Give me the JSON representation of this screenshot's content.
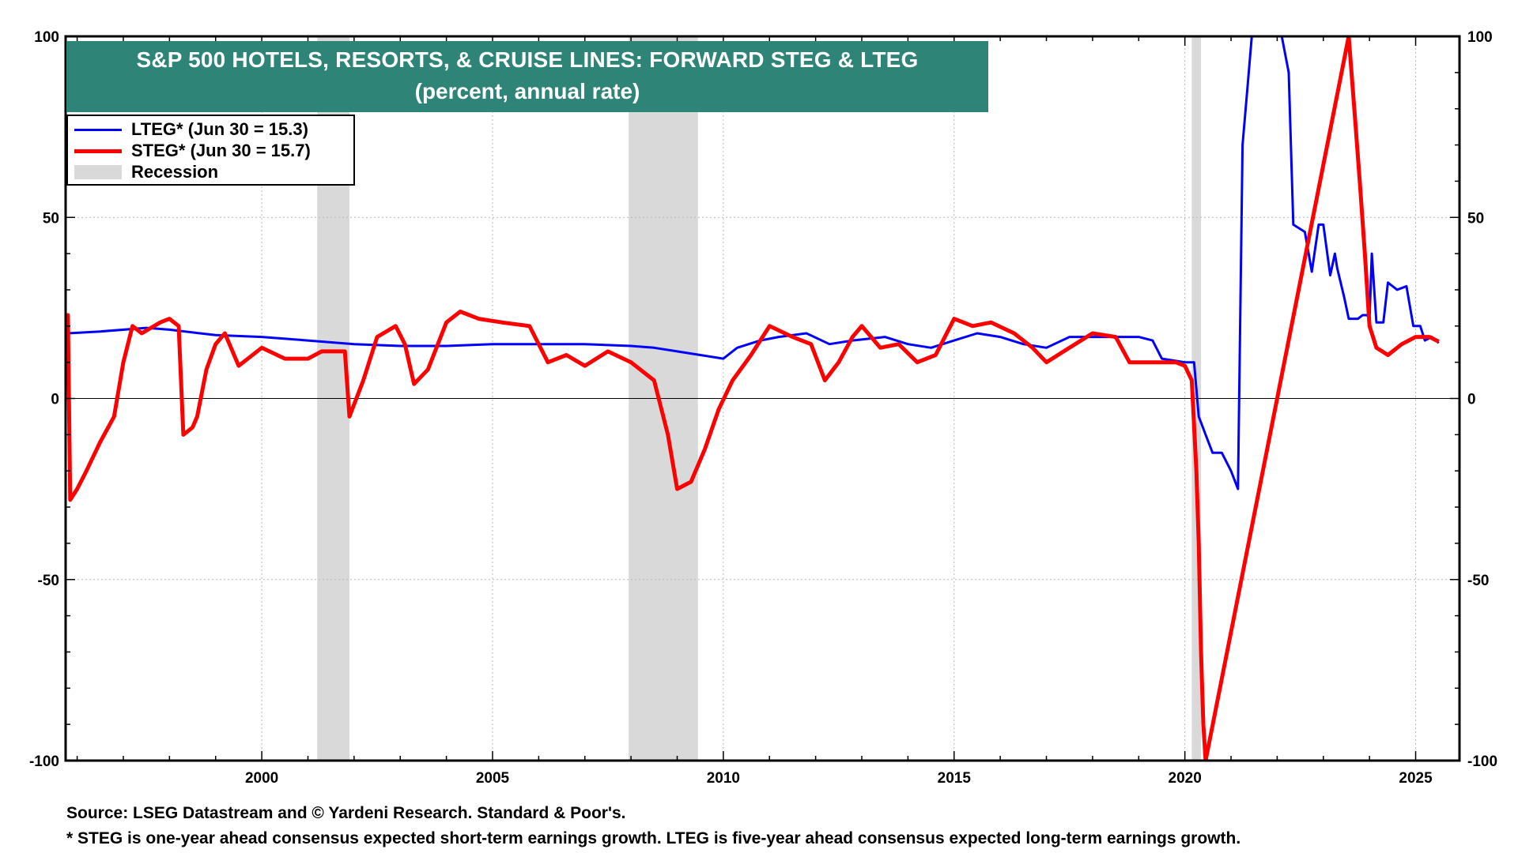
{
  "title_colors": {
    "banner": "#2e8577"
  },
  "chart_data": {
    "type": "line",
    "title": "S&P 500 HOTELS, RESORTS, & CRUISE LINES: FORWARD STEG & LTEG",
    "subtitle": "(percent, annual rate)",
    "xlabel": "",
    "ylabel": "",
    "xlim": [
      1995.75,
      2025.95
    ],
    "ylim": [
      -100,
      100
    ],
    "x_ticks": [
      2000,
      2005,
      2010,
      2015,
      2020,
      2025
    ],
    "x_tick_labels": [
      "2000",
      "2005",
      "2010",
      "2015",
      "2020",
      "2025"
    ],
    "y_ticks": [
      100,
      50,
      0,
      -50,
      -100
    ],
    "y_tick_labels": [
      "100",
      "50",
      "0",
      "-50",
      "-100"
    ],
    "grid": true,
    "legend_position": "top-left",
    "legend": [
      {
        "label": "LTEG* (Jun 30 = 15.3)",
        "color": "#0000ff",
        "kind": "line"
      },
      {
        "label": "STEG* (Jun 30 = 15.7)",
        "color": "#ff0000",
        "kind": "line"
      },
      {
        "label": "Recession",
        "color": "#d9d9d9",
        "kind": "band"
      }
    ],
    "recessions": [
      [
        2001.2,
        2001.9
      ],
      [
        2007.95,
        2009.45
      ],
      [
        2020.15,
        2020.35
      ]
    ],
    "series": [
      {
        "name": "LTEG*",
        "color": "#0000ff",
        "points": [
          [
            1995.75,
            16
          ],
          [
            1995.8,
            18
          ],
          [
            1996.5,
            18.5
          ],
          [
            1997.5,
            19.5
          ],
          [
            1998,
            19
          ],
          [
            1999,
            17.5
          ],
          [
            2000,
            17
          ],
          [
            2001,
            16
          ],
          [
            2002,
            15
          ],
          [
            2003,
            14.5
          ],
          [
            2004,
            14.5
          ],
          [
            2005,
            15
          ],
          [
            2006,
            15
          ],
          [
            2007,
            15
          ],
          [
            2008,
            14.5
          ],
          [
            2008.5,
            14
          ],
          [
            2009,
            13
          ],
          [
            2009.5,
            12
          ],
          [
            2010,
            11
          ],
          [
            2010.3,
            14
          ],
          [
            2010.8,
            16
          ],
          [
            2011.2,
            17
          ],
          [
            2011.8,
            18
          ],
          [
            2012.3,
            15
          ],
          [
            2012.8,
            16
          ],
          [
            2013.5,
            17
          ],
          [
            2014,
            15
          ],
          [
            2014.5,
            14
          ],
          [
            2015,
            16
          ],
          [
            2015.5,
            18
          ],
          [
            2016,
            17
          ],
          [
            2016.5,
            15
          ],
          [
            2017,
            14
          ],
          [
            2017.5,
            17
          ],
          [
            2018,
            17
          ],
          [
            2018.5,
            17
          ],
          [
            2019,
            17
          ],
          [
            2019.3,
            16
          ],
          [
            2019.5,
            11
          ],
          [
            2020,
            10
          ],
          [
            2020.2,
            10
          ],
          [
            2020.3,
            -5
          ],
          [
            2020.45,
            -10
          ],
          [
            2020.6,
            -15
          ],
          [
            2020.8,
            -15
          ],
          [
            2021,
            -20
          ],
          [
            2021.15,
            -25
          ],
          [
            2021.25,
            70
          ],
          [
            2021.35,
            85
          ],
          [
            2021.45,
            100
          ],
          [
            2022.1,
            100
          ],
          [
            2022.25,
            90
          ],
          [
            2022.35,
            48
          ],
          [
            2022.6,
            46
          ],
          [
            2022.75,
            35
          ],
          [
            2022.9,
            48
          ],
          [
            2023,
            48
          ],
          [
            2023.15,
            34
          ],
          [
            2023.25,
            40
          ],
          [
            2023.3,
            36
          ],
          [
            2023.45,
            28
          ],
          [
            2023.55,
            22
          ],
          [
            2023.75,
            22
          ],
          [
            2023.85,
            23
          ],
          [
            2023.95,
            23
          ],
          [
            2024,
            22
          ],
          [
            2024.05,
            40
          ],
          [
            2024.15,
            21
          ],
          [
            2024.3,
            21
          ],
          [
            2024.4,
            32
          ],
          [
            2024.6,
            30
          ],
          [
            2024.8,
            31
          ],
          [
            2024.95,
            20
          ],
          [
            2025.1,
            20
          ],
          [
            2025.2,
            16
          ],
          [
            2025.35,
            17
          ],
          [
            2025.5,
            15.3
          ]
        ]
      },
      {
        "name": "STEG*",
        "color": "#ff0000",
        "points": [
          [
            1995.75,
            22
          ],
          [
            1995.8,
            23
          ],
          [
            1995.85,
            -28
          ],
          [
            1996,
            -25
          ],
          [
            1996.2,
            -20
          ],
          [
            1996.5,
            -12
          ],
          [
            1996.8,
            -5
          ],
          [
            1997,
            10
          ],
          [
            1997.2,
            20
          ],
          [
            1997.4,
            18
          ],
          [
            1997.8,
            21
          ],
          [
            1998,
            22
          ],
          [
            1998.2,
            20
          ],
          [
            1998.3,
            -10
          ],
          [
            1998.5,
            -8
          ],
          [
            1998.6,
            -5
          ],
          [
            1998.8,
            8
          ],
          [
            1999,
            15
          ],
          [
            1999.2,
            18
          ],
          [
            1999.5,
            9
          ],
          [
            2000,
            14
          ],
          [
            2000.5,
            11
          ],
          [
            2001,
            11
          ],
          [
            2001.3,
            13
          ],
          [
            2001.8,
            13
          ],
          [
            2001.9,
            -5
          ],
          [
            2002.2,
            5
          ],
          [
            2002.5,
            17
          ],
          [
            2002.9,
            20
          ],
          [
            2003.1,
            15
          ],
          [
            2003.3,
            4
          ],
          [
            2003.6,
            8
          ],
          [
            2004,
            21
          ],
          [
            2004.3,
            24
          ],
          [
            2004.7,
            22
          ],
          [
            2005.2,
            21
          ],
          [
            2005.8,
            20
          ],
          [
            2006.2,
            10
          ],
          [
            2006.6,
            12
          ],
          [
            2007,
            9
          ],
          [
            2007.5,
            13
          ],
          [
            2008,
            10
          ],
          [
            2008.5,
            5
          ],
          [
            2008.8,
            -10
          ],
          [
            2009,
            -25
          ],
          [
            2009.3,
            -23
          ],
          [
            2009.6,
            -14
          ],
          [
            2009.9,
            -3
          ],
          [
            2010.2,
            5
          ],
          [
            2010.6,
            12
          ],
          [
            2011,
            20
          ],
          [
            2011.5,
            17
          ],
          [
            2011.9,
            15
          ],
          [
            2012.2,
            5
          ],
          [
            2012.5,
            10
          ],
          [
            2012.8,
            17
          ],
          [
            2013,
            20
          ],
          [
            2013.4,
            14
          ],
          [
            2013.8,
            15
          ],
          [
            2014.2,
            10
          ],
          [
            2014.6,
            12
          ],
          [
            2015,
            22
          ],
          [
            2015.4,
            20
          ],
          [
            2015.8,
            21
          ],
          [
            2016.3,
            18
          ],
          [
            2016.7,
            14
          ],
          [
            2017,
            10
          ],
          [
            2017.5,
            14
          ],
          [
            2018,
            18
          ],
          [
            2018.5,
            17
          ],
          [
            2018.8,
            10
          ],
          [
            2019.2,
            10
          ],
          [
            2019.8,
            10
          ],
          [
            2020,
            9
          ],
          [
            2020.15,
            5
          ],
          [
            2020.25,
            -20
          ],
          [
            2020.3,
            -40
          ],
          [
            2020.35,
            -70
          ],
          [
            2020.4,
            -90
          ],
          [
            2020.45,
            -100
          ],
          [
            2023.55,
            100
          ],
          [
            2023.7,
            75
          ],
          [
            2023.8,
            58
          ],
          [
            2023.9,
            40
          ],
          [
            2024,
            20
          ],
          [
            2024.15,
            14
          ],
          [
            2024.4,
            12
          ],
          [
            2024.7,
            15
          ],
          [
            2025,
            17
          ],
          [
            2025.3,
            17
          ],
          [
            2025.5,
            15.7
          ]
        ]
      }
    ]
  },
  "footer": {
    "source": "Source: LSEG Datastream and © Yardeni Research. Standard & Poor's.",
    "note": "* STEG is one-year ahead consensus expected short-term earnings growth. LTEG is five-year ahead consensus expected long-term earnings growth."
  }
}
